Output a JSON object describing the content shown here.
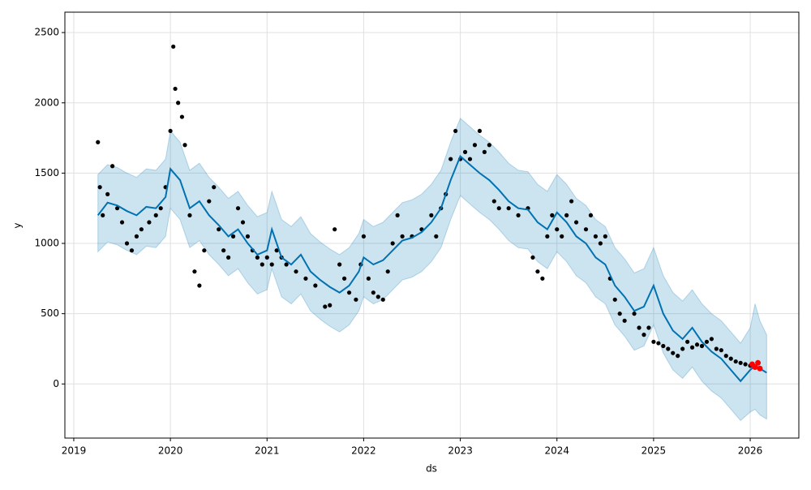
{
  "chart_data": {
    "type": "forecast",
    "xlabel": "ds",
    "ylabel": "y",
    "xlim": [
      2018.908,
      2026.503
    ],
    "ylim": [
      -385,
      2645
    ],
    "xticks": [
      2019,
      2020,
      2021,
      2022,
      2023,
      2024,
      2025,
      2026
    ],
    "yticks": [
      0,
      500,
      1000,
      1500,
      2000,
      2500
    ],
    "grid": true,
    "forecast": {
      "color": "#0072B2",
      "band_color": "#0072B2",
      "x": [
        2019.25,
        2019.35,
        2019.45,
        2019.55,
        2019.65,
        2019.75,
        2019.85,
        2019.95,
        2020.0,
        2020.1,
        2020.2,
        2020.3,
        2020.4,
        2020.5,
        2020.6,
        2020.7,
        2020.8,
        2020.9,
        2021.0,
        2021.05,
        2021.15,
        2021.25,
        2021.35,
        2021.45,
        2021.55,
        2021.65,
        2021.75,
        2021.85,
        2021.95,
        2022.0,
        2022.1,
        2022.2,
        2022.3,
        2022.4,
        2022.5,
        2022.6,
        2022.7,
        2022.8,
        2022.9,
        2023.0,
        2023.1,
        2023.2,
        2023.3,
        2023.4,
        2023.5,
        2023.6,
        2023.7,
        2023.8,
        2023.9,
        2024.0,
        2024.1,
        2024.2,
        2024.3,
        2024.4,
        2024.5,
        2024.6,
        2024.7,
        2024.8,
        2024.9,
        2025.0,
        2025.1,
        2025.2,
        2025.3,
        2025.4,
        2025.5,
        2025.6,
        2025.7,
        2025.8,
        2025.9,
        2026.0,
        2026.05,
        2026.1,
        2026.17
      ],
      "values": [
        1200,
        1290,
        1270,
        1230,
        1200,
        1260,
        1250,
        1330,
        1530,
        1450,
        1250,
        1300,
        1200,
        1130,
        1050,
        1100,
        1000,
        920,
        950,
        1100,
        900,
        850,
        920,
        800,
        740,
        690,
        650,
        700,
        800,
        900,
        850,
        880,
        950,
        1020,
        1040,
        1080,
        1150,
        1250,
        1450,
        1620,
        1560,
        1500,
        1450,
        1380,
        1300,
        1250,
        1240,
        1150,
        1100,
        1220,
        1150,
        1050,
        1000,
        900,
        850,
        700,
        620,
        520,
        550,
        700,
        500,
        380,
        320,
        400,
        300,
        230,
        180,
        100,
        20,
        100,
        130,
        110,
        80
      ],
      "lower": [
        940,
        1010,
        990,
        950,
        920,
        980,
        970,
        1050,
        1250,
        1170,
        970,
        1020,
        920,
        850,
        770,
        820,
        720,
        640,
        670,
        820,
        620,
        570,
        640,
        520,
        460,
        410,
        370,
        420,
        520,
        620,
        570,
        600,
        670,
        740,
        760,
        800,
        870,
        970,
        1170,
        1340,
        1280,
        1220,
        1170,
        1100,
        1020,
        970,
        960,
        870,
        820,
        940,
        870,
        770,
        720,
        620,
        570,
        420,
        340,
        240,
        270,
        420,
        220,
        100,
        40,
        120,
        20,
        -50,
        -100,
        -180,
        -260,
        -200,
        -180,
        -220,
        -250
      ],
      "upper": [
        1490,
        1560,
        1540,
        1500,
        1470,
        1530,
        1520,
        1600,
        1800,
        1720,
        1520,
        1570,
        1470,
        1400,
        1320,
        1370,
        1270,
        1190,
        1220,
        1370,
        1170,
        1120,
        1190,
        1070,
        1010,
        960,
        920,
        970,
        1070,
        1170,
        1120,
        1150,
        1220,
        1290,
        1310,
        1350,
        1420,
        1520,
        1720,
        1890,
        1830,
        1770,
        1720,
        1650,
        1570,
        1520,
        1510,
        1420,
        1370,
        1490,
        1420,
        1320,
        1270,
        1170,
        1120,
        970,
        890,
        790,
        820,
        970,
        770,
        650,
        590,
        670,
        570,
        500,
        450,
        370,
        290,
        400,
        570,
        450,
        350
      ]
    },
    "observed": {
      "color": "#000000",
      "x": [
        2019.25,
        2019.27,
        2019.3,
        2019.35,
        2019.4,
        2019.45,
        2019.5,
        2019.55,
        2019.6,
        2019.65,
        2019.7,
        2019.78,
        2019.85,
        2019.9,
        2019.95,
        2020.0,
        2020.03,
        2020.05,
        2020.08,
        2020.12,
        2020.15,
        2020.2,
        2020.25,
        2020.3,
        2020.35,
        2020.4,
        2020.45,
        2020.5,
        2020.55,
        2020.6,
        2020.65,
        2020.7,
        2020.75,
        2020.8,
        2020.85,
        2020.9,
        2020.95,
        2021.0,
        2021.05,
        2021.1,
        2021.15,
        2021.2,
        2021.3,
        2021.4,
        2021.5,
        2021.6,
        2021.65,
        2021.7,
        2021.75,
        2021.8,
        2021.85,
        2021.92,
        2021.97,
        2022.0,
        2022.05,
        2022.1,
        2022.15,
        2022.2,
        2022.25,
        2022.3,
        2022.35,
        2022.4,
        2022.5,
        2022.6,
        2022.7,
        2022.75,
        2022.8,
        2022.85,
        2022.9,
        2022.95,
        2023.0,
        2023.05,
        2023.1,
        2023.15,
        2023.2,
        2023.25,
        2023.3,
        2023.35,
        2023.4,
        2023.5,
        2023.6,
        2023.7,
        2023.75,
        2023.8,
        2023.85,
        2023.9,
        2023.95,
        2024.0,
        2024.05,
        2024.1,
        2024.15,
        2024.2,
        2024.3,
        2024.35,
        2024.4,
        2024.45,
        2024.5,
        2024.55,
        2024.6,
        2024.65,
        2024.7,
        2024.8,
        2024.85,
        2024.9,
        2024.95,
        2025.0,
        2025.05,
        2025.1,
        2025.15,
        2025.2,
        2025.25,
        2025.3,
        2025.35,
        2025.4,
        2025.45,
        2025.5,
        2025.55,
        2025.6,
        2025.65,
        2025.7,
        2025.75,
        2025.8,
        2025.85,
        2025.9,
        2025.95,
        2026.0
      ],
      "values": [
        1720,
        1400,
        1200,
        1350,
        1550,
        1250,
        1150,
        1000,
        950,
        1050,
        1100,
        1150,
        1200,
        1250,
        1400,
        1800,
        2400,
        2100,
        2000,
        1900,
        1700,
        1200,
        800,
        700,
        950,
        1300,
        1400,
        1100,
        950,
        900,
        1050,
        1250,
        1150,
        1050,
        950,
        900,
        850,
        900,
        850,
        950,
        900,
        850,
        800,
        750,
        700,
        550,
        560,
        1100,
        850,
        750,
        650,
        600,
        850,
        1050,
        750,
        650,
        620,
        600,
        800,
        1000,
        1200,
        1050,
        1050,
        1100,
        1200,
        1050,
        1250,
        1350,
        1600,
        1800,
        1600,
        1650,
        1600,
        1700,
        1800,
        1650,
        1700,
        1300,
        1250,
        1250,
        1200,
        1250,
        900,
        800,
        750,
        1050,
        1200,
        1100,
        1050,
        1200,
        1300,
        1150,
        1100,
        1200,
        1050,
        1000,
        1050,
        750,
        600,
        500,
        450,
        500,
        400,
        350,
        400,
        300,
        290,
        270,
        250,
        220,
        200,
        250,
        300,
        260,
        280,
        270,
        300,
        320,
        250,
        240,
        200,
        180,
        160,
        150,
        140,
        130
      ]
    },
    "highlight": {
      "color": "#ff0000",
      "x": [
        2026.02,
        2026.05,
        2026.08,
        2026.1
      ],
      "values": [
        140,
        120,
        150,
        110
      ]
    }
  }
}
